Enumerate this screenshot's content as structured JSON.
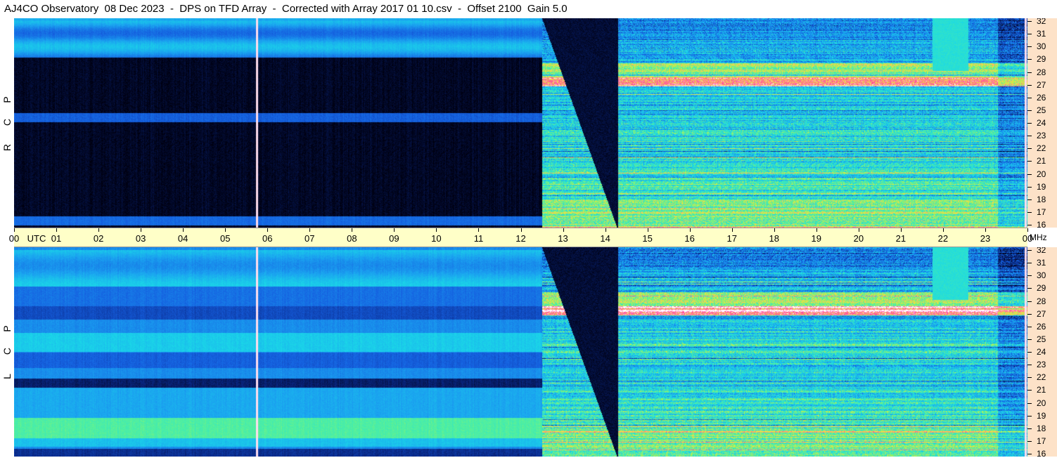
{
  "header": {
    "title": "AJ4CO Observatory  08 Dec 2023  -  DPS on TFD Array  -  Corrected with Array 2017 01 10.csv  -  Offset 2100  Gain 5.0"
  },
  "panels": {
    "top_label": [
      "R",
      "C",
      "P"
    ],
    "bottom_label": [
      "L",
      "C",
      "P"
    ]
  },
  "time_axis": {
    "labels": [
      "00",
      "UTC",
      "01",
      "02",
      "03",
      "04",
      "05",
      "06",
      "07",
      "08",
      "09",
      "10",
      "11",
      "12",
      "13",
      "14",
      "15",
      "16",
      "17",
      "18",
      "19",
      "20",
      "21",
      "22",
      "23",
      "00",
      "MHz"
    ]
  },
  "chart_data": {
    "type": "heatmap",
    "title": "AJ4CO Observatory  08 Dec 2023  -  DPS on TFD Array  -  Corrected with Array 2017 01 10.csv  -  Offset 2100  Gain 5.0",
    "xlabel": "UTC",
    "ylabel": "MHz",
    "x_ticks": [
      "00",
      "01",
      "02",
      "03",
      "04",
      "05",
      "06",
      "07",
      "08",
      "09",
      "10",
      "11",
      "12",
      "13",
      "14",
      "15",
      "16",
      "17",
      "18",
      "19",
      "20",
      "21",
      "22",
      "23",
      "00"
    ],
    "xlim": [
      0,
      24
    ],
    "y_ticks": [
      "16",
      "17",
      "18",
      "19",
      "20",
      "21",
      "22",
      "23",
      "24",
      "25",
      "26",
      "27",
      "28",
      "29",
      "30",
      "31",
      "32"
    ],
    "ylim": [
      16,
      32
    ],
    "panels": [
      {
        "name": "RCP"
      },
      {
        "name": "LCP"
      }
    ],
    "colormap": [
      "#000010",
      "#0a2a8a",
      "#1560e0",
      "#1aa0f0",
      "#1ad8e8",
      "#50f0a0",
      "#d0f040",
      "#ffc060",
      "#ff40a0",
      "#ffffff"
    ],
    "features": {
      "sunrise_utc": 12.5,
      "data_gap_utc": 5.75
    }
  }
}
